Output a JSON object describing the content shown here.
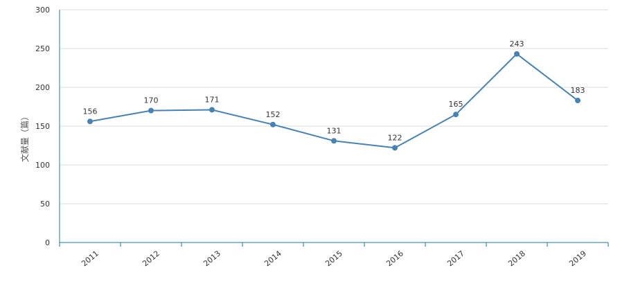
{
  "chart_data": {
    "type": "line",
    "title": "",
    "xlabel": "",
    "ylabel": "文献量（篇）",
    "categories": [
      "2011",
      "2012",
      "2013",
      "2014",
      "2015",
      "2016",
      "2017",
      "2018",
      "2019"
    ],
    "series": [
      {
        "name": "文献量",
        "values": [
          156,
          170,
          171,
          152,
          131,
          122,
          165,
          243,
          183
        ]
      }
    ],
    "ylim": [
      0,
      300
    ],
    "yticks": [
      "0",
      "50",
      "100",
      "150",
      "200",
      "250",
      "300"
    ],
    "grid": true,
    "legend": "none",
    "colors": {
      "line": "#4682b4",
      "axis": "#1f7a99",
      "grid": "#dddddd"
    }
  }
}
